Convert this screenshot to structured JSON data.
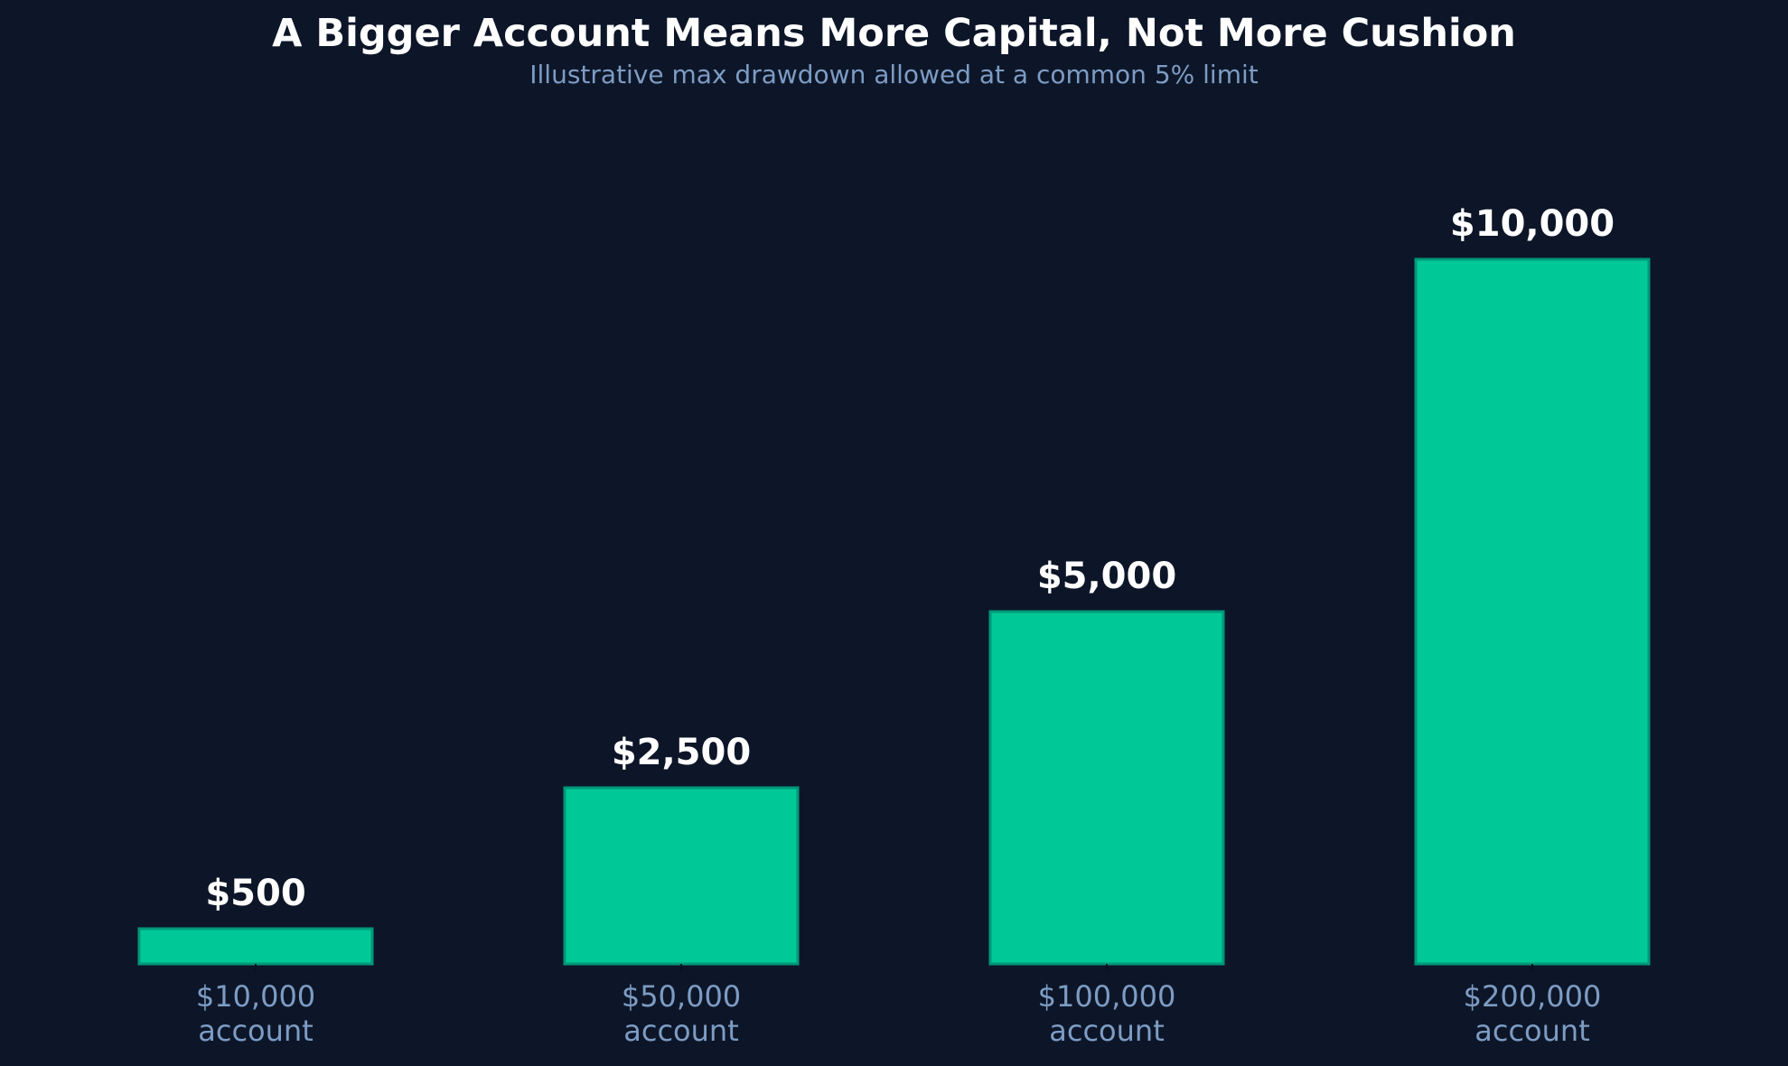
{
  "chart_data": {
    "type": "bar",
    "title": "A Bigger Account Means More Capital, Not More Cushion",
    "subtitle": "Illustrative max drawdown allowed at a common 5% limit",
    "categories": [
      [
        "$10,000",
        "account"
      ],
      [
        "$50,000",
        "account"
      ],
      [
        "$100,000",
        "account"
      ],
      [
        "$200,000",
        "account"
      ]
    ],
    "values": [
      500,
      2500,
      5000,
      10000
    ],
    "value_labels": [
      "$500",
      "$2,500",
      "$5,000",
      "$10,000"
    ],
    "xlabel": "",
    "ylabel": "",
    "ylim": [
      0,
      11500
    ],
    "grid": false,
    "legend": "none",
    "colors": {
      "background": "#0d1628",
      "bar_fill": "#00c896",
      "bar_edge": "#00987a",
      "title": "#ffffff",
      "subtitle": "#7d9cc4",
      "value_label": "#ffffff",
      "tick_label": "#7d9cc4",
      "tick_mark": "#0a1220"
    }
  }
}
